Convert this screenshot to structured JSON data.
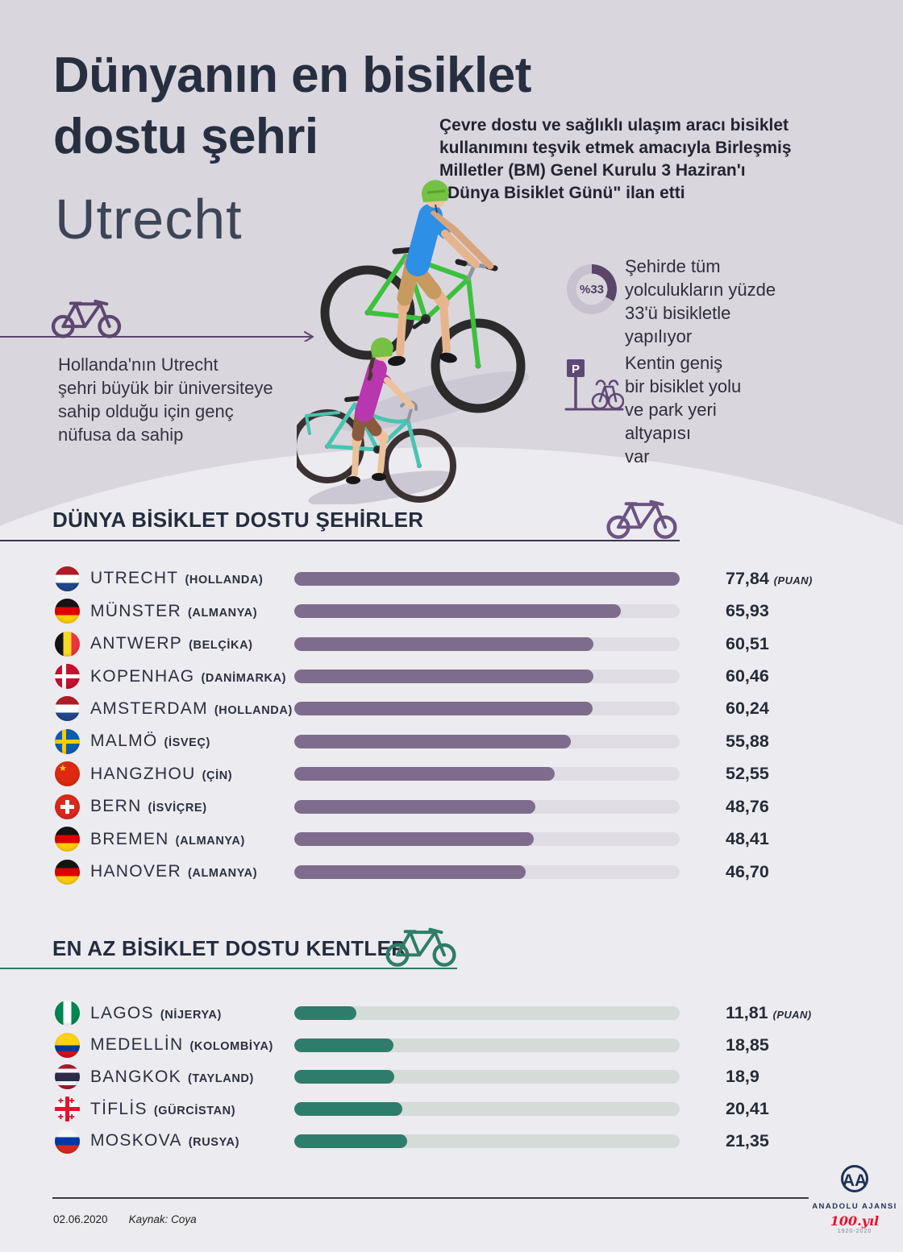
{
  "page": {
    "title_line1": "Dünyanın en bisiklet",
    "title_line2": "dostu şehri",
    "title_city": "Utrecht",
    "intro": "Çevre dostu ve sağlıklı ulaşım aracı bisiklet\nkullanımını teşvik etmek amacıyla Birleşmiş\nMilletler (BM) Genel Kurulu 3 Haziran'ı\n\"Dünya Bisiklet Günü\" ilan etti"
  },
  "facts": {
    "left_note": "Hollanda'nın Utrecht\nşehri büyük bir üniversiteye\nsahip olduğu için genç\nnüfusa da sahip",
    "stat_percent": {
      "value_label": "%33",
      "percent": 33,
      "text": "Şehirde tüm\nyolculukların yüzde\n33'ü bisikletle\nyapılıyor"
    },
    "stat_parking": {
      "sign_letter": "P",
      "text": "Kentin geniş\nbir bisiklet yolu\nve park yeri\naltyapısı\nvar"
    }
  },
  "icons": {
    "bicycle_purple": "bicycle-outline",
    "bicycle_green": "bicycle-outline",
    "arrow_right": "arrow-line",
    "donut_33": "donut-chart",
    "parking": "bike-parking-sign"
  },
  "colors": {
    "band_dark": "#d9d6de",
    "base": "#ecebef",
    "navy": "#272e40",
    "purple_accent": "#5d4973",
    "purple_bar": "#7d6c8c",
    "green_accent": "#2e7d66",
    "green_bar": "#2e7d6a",
    "anniversary_red": "#e8112d"
  },
  "chart_data": [
    {
      "type": "bar",
      "title": "DÜNYA BİSİKLET DOSTU ŞEHİRLER",
      "value_unit_label": "(PUAN)",
      "xlim": [
        0,
        77.84
      ],
      "bar_color": "#7d6c8c",
      "track_color": "#dfdde3",
      "rows": [
        {
          "city": "UTRECHT",
          "country": "HOLLANDA",
          "flag": "nl",
          "value": 77.84,
          "score_label": "77,84"
        },
        {
          "city": "MÜNSTER",
          "country": "ALMANYA",
          "flag": "de",
          "value": 65.93,
          "score_label": "65,93"
        },
        {
          "city": "ANTWERP",
          "country": "BELÇİKA",
          "flag": "be",
          "value": 60.51,
          "score_label": "60,51"
        },
        {
          "city": "KOPENHAG",
          "country": "DANİMARKA",
          "flag": "dk",
          "value": 60.46,
          "score_label": "60,46"
        },
        {
          "city": "AMSTERDAM",
          "country": "HOLLANDA",
          "flag": "nl",
          "value": 60.24,
          "score_label": "60,24"
        },
        {
          "city": "MALMÖ",
          "country": "İSVEÇ",
          "flag": "se",
          "value": 55.88,
          "score_label": "55,88"
        },
        {
          "city": "HANGZHOU",
          "country": "ÇİN",
          "flag": "cn",
          "value": 52.55,
          "score_label": "52,55"
        },
        {
          "city": "BERN",
          "country": "İSVİÇRE",
          "flag": "ch",
          "value": 48.76,
          "score_label": "48,76"
        },
        {
          "city": "BREMEN",
          "country": "ALMANYA",
          "flag": "de",
          "value": 48.41,
          "score_label": "48,41"
        },
        {
          "city": "HANOVER",
          "country": "ALMANYA",
          "flag": "de",
          "value": 46.7,
          "score_label": "46,70"
        }
      ]
    },
    {
      "type": "bar",
      "title": "EN AZ BİSİKLET DOSTU KENTLER",
      "value_unit_label": "(PUAN)",
      "xlim": [
        0,
        73
      ],
      "bar_color": "#2e7d6a",
      "track_color": "#d5dbd8",
      "rows": [
        {
          "city": "LAGOS",
          "country": "NİJERYA",
          "flag": "ng",
          "value": 11.81,
          "score_label": "11,81"
        },
        {
          "city": "MEDELLİN",
          "country": "KOLOMBİYA",
          "flag": "co",
          "value": 18.85,
          "score_label": "18,85"
        },
        {
          "city": "BANGKOK",
          "country": "TAYLAND",
          "flag": "th",
          "value": 18.9,
          "score_label": "18,9"
        },
        {
          "city": "TİFLİS",
          "country": "GÜRCİSTAN",
          "flag": "ge",
          "value": 20.41,
          "score_label": "20,41"
        },
        {
          "city": "MOSKOVA",
          "country": "RUSYA",
          "flag": "ru",
          "value": 21.35,
          "score_label": "21,35"
        }
      ]
    }
  ],
  "footer": {
    "date": "02.06.2020",
    "source": "Kaynak: Coya"
  },
  "logo": {
    "monogram": "AA",
    "name": "ANADOLU AJANSI",
    "anniversary": "100.yıl",
    "years": "1920-2020"
  }
}
